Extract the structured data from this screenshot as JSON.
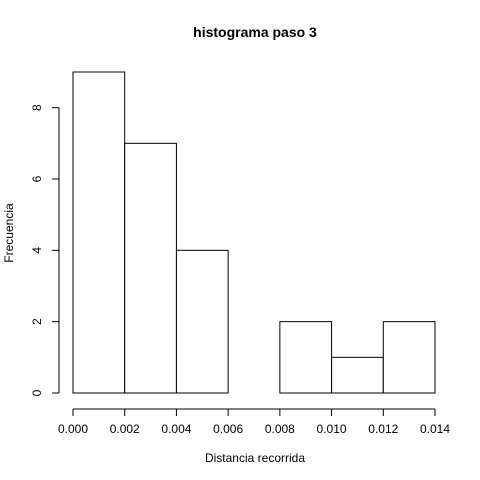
{
  "chart_data": {
    "type": "bar",
    "title": "histograma paso  3",
    "xlabel": "Distancia recorrida",
    "ylabel": "Frecuencia",
    "bins": [
      {
        "from": 0.0,
        "to": 0.002,
        "count": 9
      },
      {
        "from": 0.002,
        "to": 0.004,
        "count": 7
      },
      {
        "from": 0.004,
        "to": 0.006,
        "count": 4
      },
      {
        "from": 0.006,
        "to": 0.008,
        "count": 0
      },
      {
        "from": 0.008,
        "to": 0.01,
        "count": 2
      },
      {
        "from": 0.01,
        "to": 0.012,
        "count": 1
      },
      {
        "from": 0.012,
        "to": 0.014,
        "count": 2
      }
    ],
    "xlim": [
      0,
      0.014
    ],
    "ylim": [
      0,
      9
    ],
    "x_ticks": [
      0.0,
      0.002,
      0.004,
      0.006,
      0.008,
      0.01,
      0.012,
      0.014
    ],
    "x_tick_labels": [
      "0.000",
      "0.002",
      "0.004",
      "0.006",
      "0.008",
      "0.010",
      "0.012",
      "0.014"
    ],
    "y_ticks": [
      0,
      2,
      4,
      6,
      8
    ],
    "y_tick_labels": [
      "0",
      "2",
      "4",
      "6",
      "8"
    ],
    "grid": false
  }
}
